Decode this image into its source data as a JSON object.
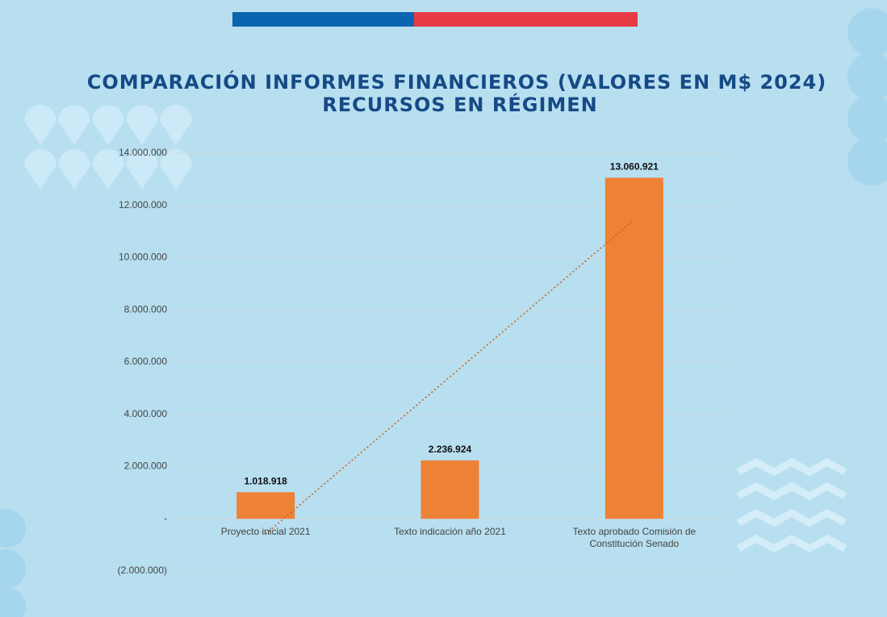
{
  "chart_data": {
    "type": "bar",
    "title": "COMPARACIÓN INFORMES FINANCIEROS (VALORES EN M$ 2024)",
    "subtitle": "RECURSOS EN RÉGIMEN",
    "categories": [
      "Proyecto inicial 2021",
      "Texto indicación año 2021",
      "Texto aprobado Comisión de Constitución Senado"
    ],
    "values": [
      1018918,
      2236924,
      13060921
    ],
    "value_labels": [
      "1.018.918",
      "2.236.924",
      "13.060.921"
    ],
    "color": "#ed8136",
    "ylim": [
      -2000000,
      14000000
    ],
    "yticks": [
      {
        "value": -2000000,
        "label": "(2.000.000)"
      },
      {
        "value": 0,
        "label": "-"
      },
      {
        "value": 2000000,
        "label": "2.000.000"
      },
      {
        "value": 4000000,
        "label": "4.000.000"
      },
      {
        "value": 6000000,
        "label": "6.000.000"
      },
      {
        "value": 8000000,
        "label": "8.000.000"
      },
      {
        "value": 10000000,
        "label": "10.000.000"
      },
      {
        "value": 12000000,
        "label": "12.000.000"
      },
      {
        "value": 14000000,
        "label": "14.000.000"
      }
    ],
    "grid": true,
    "trendline": true
  }
}
